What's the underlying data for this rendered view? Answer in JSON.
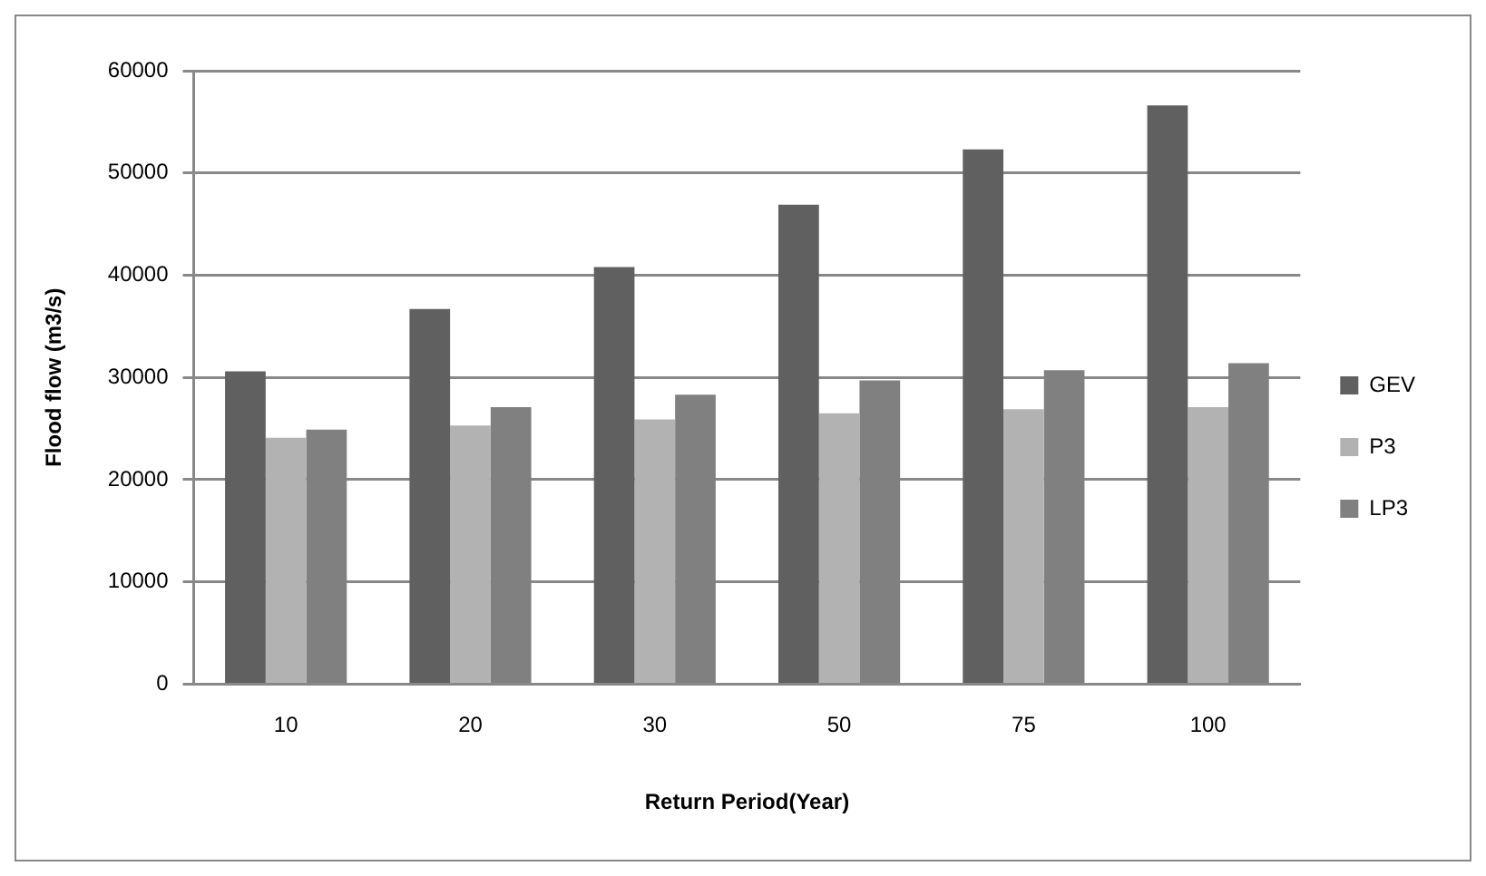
{
  "chart_data": {
    "type": "bar",
    "xlabel": "Return Period(Year)",
    "ylabel": "Flood flow (m3/s)",
    "categories": [
      "10",
      "20",
      "30",
      "50",
      "75",
      "100"
    ],
    "series": [
      {
        "name": "GEV",
        "color": "#606060",
        "values": [
          30600,
          36700,
          40800,
          46900,
          52300,
          56600
        ]
      },
      {
        "name": "P3",
        "color": "#b2b2b2",
        "values": [
          24100,
          25300,
          25900,
          26500,
          26900,
          27100
        ]
      },
      {
        "name": "LP3",
        "color": "#808080",
        "values": [
          24900,
          27100,
          28300,
          29700,
          30700,
          31400
        ]
      }
    ],
    "ylim": [
      0,
      60000
    ],
    "yticks": [
      0,
      10000,
      20000,
      30000,
      40000,
      50000,
      60000
    ],
    "grid": "y",
    "legend": "right"
  }
}
